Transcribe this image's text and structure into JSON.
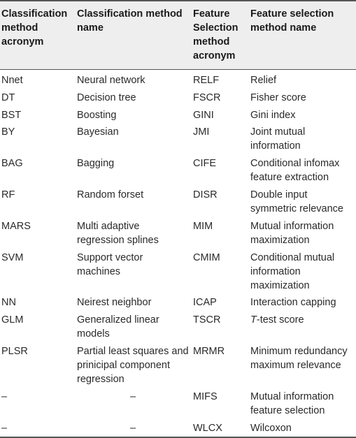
{
  "header": {
    "col1": "Classification method acronym",
    "col2": "Classification method name",
    "col3": "Feature Selection method acronym",
    "col4": "Feature selection method name"
  },
  "rows": [
    {
      "cls_acr": "Nnet",
      "cls_name": "Neural network",
      "fs_acr": "RELF",
      "fs_name": "Relief"
    },
    {
      "cls_acr": "DT",
      "cls_name": "Decision tree",
      "fs_acr": "FSCR",
      "fs_name": "Fisher score"
    },
    {
      "cls_acr": "BST",
      "cls_name": "Boosting",
      "fs_acr": "GINI",
      "fs_name": "Gini index"
    },
    {
      "cls_acr": "BY",
      "cls_name": "Bayesian",
      "fs_acr": "JMI",
      "fs_name": "Joint mutual information"
    },
    {
      "cls_acr": "BAG",
      "cls_name": "Bagging",
      "fs_acr": "CIFE",
      "fs_name": "Conditional infomax feature extraction"
    },
    {
      "cls_acr": "RF",
      "cls_name": "Random forset",
      "fs_acr": "DISR",
      "fs_name": "Double input symmetric relevance"
    },
    {
      "cls_acr": "MARS",
      "cls_name": "Multi adaptive regression splines",
      "fs_acr": "MIM",
      "fs_name": "Mutual information maximization"
    },
    {
      "cls_acr": "SVM",
      "cls_name": "Support vector machines",
      "fs_acr": "CMIM",
      "fs_name": "Conditional mutual information maximization"
    },
    {
      "cls_acr": "NN",
      "cls_name": "Neirest neighbor",
      "fs_acr": "ICAP",
      "fs_name": "Interaction capping"
    },
    {
      "cls_acr": "GLM",
      "cls_name": "Generalized linear models",
      "fs_acr": "TSCR",
      "fs_name_italic": "T",
      "fs_name": "-test score"
    },
    {
      "cls_acr": "PLSR",
      "cls_name": "Partial least squares and prinicipal component regression",
      "fs_acr": "MRMR",
      "fs_name": "Minimum redundancy maximum relevance"
    },
    {
      "cls_acr": "–",
      "cls_name": "–",
      "fs_acr": "MIFS",
      "fs_name": "Mutual information feature selection"
    },
    {
      "cls_acr": "–",
      "cls_name": "–",
      "fs_acr": "WLCX",
      "fs_name": "Wilcoxon"
    }
  ]
}
